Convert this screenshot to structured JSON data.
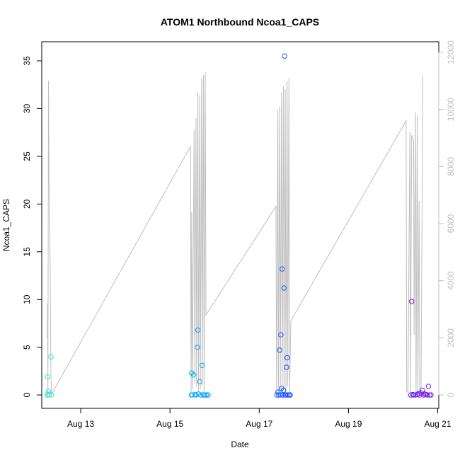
{
  "chart_data": {
    "type": "scatter",
    "title": "ATOM1 Northbound Ncoa1_CAPS",
    "xlabel": "Date",
    "ylabel": "Ncoa1_CAPS",
    "x_ticks": [
      {
        "date": "2023-08-13",
        "label": "Aug 13"
      },
      {
        "date": "2023-08-15",
        "label": "Aug 15"
      },
      {
        "date": "2023-08-17",
        "label": "Aug 17"
      },
      {
        "date": "2023-08-19",
        "label": "Aug 19"
      },
      {
        "date": "2023-08-21",
        "label": "Aug 21"
      }
    ],
    "xlim": [
      "2023-08-12T03:02",
      "2023-08-21T00:34"
    ],
    "ylim": [
      -1.4,
      37
    ],
    "y_ticks": [
      0,
      5,
      10,
      15,
      20,
      25,
      30,
      35
    ],
    "y2_ticks": [
      0,
      2000,
      4000,
      6000,
      8000,
      10000,
      12000
    ],
    "y2lim": [
      -470,
      12370
    ],
    "grid": false,
    "colors": {
      "line_series": "#bebebe",
      "point_gradient": [
        "#40e0d0",
        "#00bfff",
        "#1e40ff",
        "#7b1fe8"
      ],
      "axis": "#000000"
    },
    "points": [
      {
        "x": "2023-08-12T06:00",
        "y": 0.0
      },
      {
        "x": "2023-08-12T06:10",
        "y": 1.9
      },
      {
        "x": "2023-08-12T06:20",
        "y": 0.1
      },
      {
        "x": "2023-08-12T06:35",
        "y": 0.4
      },
      {
        "x": "2023-08-12T07:00",
        "y": 0.05
      },
      {
        "x": "2023-08-12T08:00",
        "y": 4.0
      },
      {
        "x": "2023-08-12T08:20",
        "y": 0.0
      },
      {
        "x": "2023-08-15T11:30",
        "y": 0.0
      },
      {
        "x": "2023-08-15T11:40",
        "y": 2.3
      },
      {
        "x": "2023-08-15T12:00",
        "y": 0.0
      },
      {
        "x": "2023-08-15T12:45",
        "y": 2.1
      },
      {
        "x": "2023-08-15T13:30",
        "y": 0.05
      },
      {
        "x": "2023-08-15T14:00",
        "y": 0.0
      },
      {
        "x": "2023-08-15T14:45",
        "y": 5.0
      },
      {
        "x": "2023-08-15T15:00",
        "y": 6.8
      },
      {
        "x": "2023-08-15T15:20",
        "y": 0.1
      },
      {
        "x": "2023-08-15T16:00",
        "y": 1.4
      },
      {
        "x": "2023-08-15T16:40",
        "y": 0.0
      },
      {
        "x": "2023-08-15T17:20",
        "y": 3.1
      },
      {
        "x": "2023-08-15T18:00",
        "y": 0.0
      },
      {
        "x": "2023-08-15T18:40",
        "y": 0.0
      },
      {
        "x": "2023-08-15T19:30",
        "y": 0.0
      },
      {
        "x": "2023-08-15T20:30",
        "y": 0.0
      },
      {
        "x": "2023-08-17T09:30",
        "y": 0.0
      },
      {
        "x": "2023-08-17T10:00",
        "y": 0.3
      },
      {
        "x": "2023-08-17T10:30",
        "y": 0.0
      },
      {
        "x": "2023-08-17T11:00",
        "y": 4.7
      },
      {
        "x": "2023-08-17T11:20",
        "y": 0.0
      },
      {
        "x": "2023-08-17T11:40",
        "y": 6.3
      },
      {
        "x": "2023-08-17T12:00",
        "y": 0.7
      },
      {
        "x": "2023-08-17T12:20",
        "y": 13.2
      },
      {
        "x": "2023-08-17T12:40",
        "y": 0.0
      },
      {
        "x": "2023-08-17T13:00",
        "y": 0.5
      },
      {
        "x": "2023-08-17T13:20",
        "y": 11.2
      },
      {
        "x": "2023-08-17T13:40",
        "y": 35.5
      },
      {
        "x": "2023-08-17T14:00",
        "y": 0.0
      },
      {
        "x": "2023-08-17T14:20",
        "y": 0.0
      },
      {
        "x": "2023-08-17T14:40",
        "y": 2.9
      },
      {
        "x": "2023-08-17T15:00",
        "y": 3.9
      },
      {
        "x": "2023-08-17T15:20",
        "y": 0.0
      },
      {
        "x": "2023-08-17T16:00",
        "y": 0.0
      },
      {
        "x": "2023-08-17T16:40",
        "y": 0.0
      },
      {
        "x": "2023-08-20T09:30",
        "y": 0.0
      },
      {
        "x": "2023-08-20T10:00",
        "y": 9.8
      },
      {
        "x": "2023-08-20T10:30",
        "y": 0.05
      },
      {
        "x": "2023-08-20T11:00",
        "y": 0.0
      },
      {
        "x": "2023-08-20T12:00",
        "y": 0.0
      },
      {
        "x": "2023-08-20T13:00",
        "y": 0.05
      },
      {
        "x": "2023-08-20T13:40",
        "y": 0.15
      },
      {
        "x": "2023-08-20T14:20",
        "y": 0.0
      },
      {
        "x": "2023-08-20T15:00",
        "y": 0.2
      },
      {
        "x": "2023-08-20T15:40",
        "y": 0.5
      },
      {
        "x": "2023-08-20T16:20",
        "y": 0.0
      },
      {
        "x": "2023-08-20T17:00",
        "y": 0.1
      },
      {
        "x": "2023-08-20T17:40",
        "y": 0.05
      },
      {
        "x": "2023-08-20T18:20",
        "y": 0.0
      },
      {
        "x": "2023-08-20T19:00",
        "y": 0.9
      },
      {
        "x": "2023-08-20T19:40",
        "y": 0.0
      },
      {
        "x": "2023-08-20T20:20",
        "y": 0.0
      }
    ],
    "line": [
      {
        "x": "2023-08-12T06:00",
        "y2": 2000
      },
      {
        "x": "2023-08-12T06:10",
        "y2": 3200
      },
      {
        "x": "2023-08-12T06:20",
        "y2": 0
      },
      {
        "x": "2023-08-12T06:40",
        "y2": 11000
      },
      {
        "x": "2023-08-12T07:00",
        "y2": 7000
      },
      {
        "x": "2023-08-12T07:30",
        "y2": 5000
      },
      {
        "x": "2023-08-12T08:00",
        "y2": 600
      },
      {
        "x": "2023-08-12T08:20",
        "y2": 30
      },
      {
        "x": "2023-08-15T11:00",
        "y2": 8700
      },
      {
        "x": "2023-08-15T11:20",
        "y2": 100
      },
      {
        "x": "2023-08-15T11:40",
        "y2": 6400
      },
      {
        "x": "2023-08-15T12:00",
        "y2": 200
      },
      {
        "x": "2023-08-15T13:00",
        "y2": 9300
      },
      {
        "x": "2023-08-15T13:20",
        "y2": 400
      },
      {
        "x": "2023-08-15T14:00",
        "y2": 9700
      },
      {
        "x": "2023-08-15T14:20",
        "y2": 300
      },
      {
        "x": "2023-08-15T15:00",
        "y2": 10600
      },
      {
        "x": "2023-08-15T15:20",
        "y2": 100
      },
      {
        "x": "2023-08-15T16:00",
        "y2": 10500
      },
      {
        "x": "2023-08-15T16:20",
        "y2": 200
      },
      {
        "x": "2023-08-15T17:00",
        "y2": 11100
      },
      {
        "x": "2023-08-15T17:20",
        "y2": 300
      },
      {
        "x": "2023-08-15T18:00",
        "y2": 11200
      },
      {
        "x": "2023-08-15T18:20",
        "y2": 100
      },
      {
        "x": "2023-08-15T19:00",
        "y2": 11300
      },
      {
        "x": "2023-08-15T19:20",
        "y2": 2800
      },
      {
        "x": "2023-08-17T09:00",
        "y2": 6600
      },
      {
        "x": "2023-08-17T09:20",
        "y2": 0
      },
      {
        "x": "2023-08-17T10:00",
        "y2": 10000
      },
      {
        "x": "2023-08-17T10:20",
        "y2": 100
      },
      {
        "x": "2023-08-17T11:00",
        "y2": 10100
      },
      {
        "x": "2023-08-17T11:20",
        "y2": 200
      },
      {
        "x": "2023-08-17T12:00",
        "y2": 10600
      },
      {
        "x": "2023-08-17T12:20",
        "y2": 100
      },
      {
        "x": "2023-08-17T13:00",
        "y2": 10800
      },
      {
        "x": "2023-08-17T13:20",
        "y2": 200
      },
      {
        "x": "2023-08-17T14:00",
        "y2": 10700
      },
      {
        "x": "2023-08-17T14:20",
        "y2": 100
      },
      {
        "x": "2023-08-17T15:00",
        "y2": 11000
      },
      {
        "x": "2023-08-17T15:20",
        "y2": 300
      },
      {
        "x": "2023-08-17T16:00",
        "y2": 11100
      },
      {
        "x": "2023-08-17T16:20",
        "y2": 100
      },
      {
        "x": "2023-08-17T17:00",
        "y2": 2600
      },
      {
        "x": "2023-08-20T07:00",
        "y2": 9600
      },
      {
        "x": "2023-08-20T07:20",
        "y2": 100
      },
      {
        "x": "2023-08-20T08:00",
        "y2": 100
      },
      {
        "x": "2023-08-20T09:00",
        "y2": 9200
      },
      {
        "x": "2023-08-20T09:20",
        "y2": 100
      },
      {
        "x": "2023-08-20T10:00",
        "y2": 9100
      },
      {
        "x": "2023-08-20T11:00",
        "y2": 8900
      },
      {
        "x": "2023-08-20T11:20",
        "y2": 2100
      },
      {
        "x": "2023-08-20T12:00",
        "y2": 9900
      },
      {
        "x": "2023-08-20T12:20",
        "y2": 100
      },
      {
        "x": "2023-08-20T13:00",
        "y2": 9800
      },
      {
        "x": "2023-08-20T13:20",
        "y2": 100
      },
      {
        "x": "2023-08-20T14:00",
        "y2": 6800
      },
      {
        "x": "2023-08-20T14:20",
        "y2": 200
      },
      {
        "x": "2023-08-20T15:00",
        "y2": 100
      },
      {
        "x": "2023-08-20T16:00",
        "y2": 11200
      }
    ]
  }
}
